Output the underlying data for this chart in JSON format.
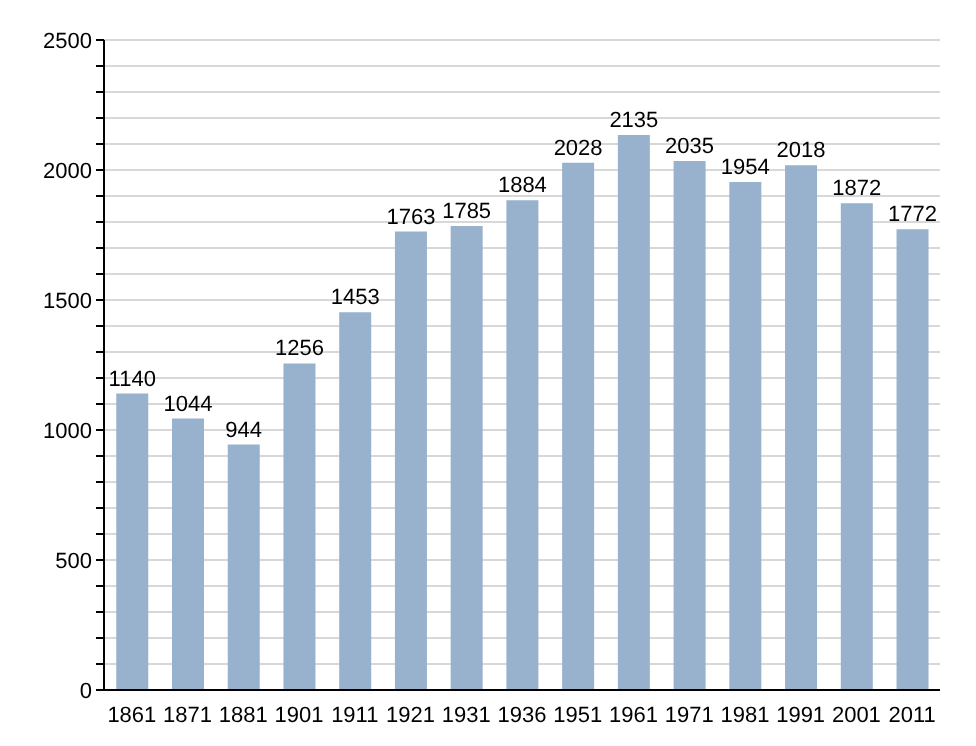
{
  "chart_data": {
    "type": "bar",
    "categories": [
      "1861",
      "1871",
      "1881",
      "1901",
      "1911",
      "1921",
      "1931",
      "1936",
      "1951",
      "1961",
      "1971",
      "1981",
      "1991",
      "2001",
      "2011"
    ],
    "values": [
      1140,
      1044,
      944,
      1256,
      1453,
      1763,
      1785,
      1884,
      2028,
      2135,
      2035,
      1954,
      2018,
      1872,
      1772
    ],
    "color": "#98b1cc",
    "ylim": [
      0,
      2500
    ],
    "yticks": [
      0,
      {
        "value": 100,
        "label": null
      },
      {
        "value": 200,
        "label": null
      },
      {
        "value": 300,
        "label": null
      },
      {
        "value": 400,
        "label": null
      },
      500,
      {
        "value": 600,
        "label": null
      },
      {
        "value": 700,
        "label": null
      },
      {
        "value": 800,
        "label": null
      },
      {
        "value": 900,
        "label": null
      },
      1000,
      {
        "value": 1100,
        "label": null
      },
      {
        "value": 1200,
        "label": null
      },
      {
        "value": 1300,
        "label": null
      },
      {
        "value": 1400,
        "label": null
      },
      1500,
      {
        "value": 1600,
        "label": null
      },
      {
        "value": 1700,
        "label": null
      },
      {
        "value": 1800,
        "label": null
      },
      {
        "value": 1900,
        "label": null
      },
      2000,
      {
        "value": 2100,
        "label": null
      },
      {
        "value": 2200,
        "label": null
      },
      {
        "value": 2300,
        "label": null
      },
      {
        "value": 2400,
        "label": null
      },
      2500
    ],
    "grid": "y",
    "data_labels": true
  }
}
